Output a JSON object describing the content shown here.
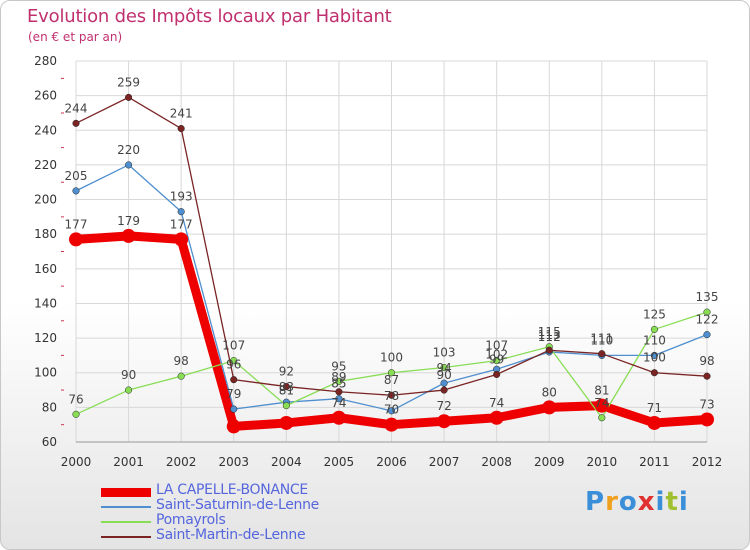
{
  "title": "Evolution des Impôts locaux par Habitant",
  "subtitle": "(en € et par an)",
  "logo": {
    "text": "Proxiti",
    "colors": [
      "#3a8fd8",
      "#f0a020",
      "#3a8fd8",
      "#e03030",
      "#3a8fd8",
      "#a0c030",
      "#3a8fd8"
    ]
  },
  "chart_data": {
    "type": "line",
    "title": "Evolution des Impôts locaux par Habitant",
    "subtitle": "(en € et par an)",
    "xlabel": "",
    "ylabel": "",
    "ylim": [
      60,
      280
    ],
    "yticks": [
      60,
      80,
      100,
      120,
      140,
      160,
      180,
      200,
      220,
      240,
      260,
      280
    ],
    "x": [
      "2000",
      "2001",
      "2002",
      "2003",
      "2004",
      "2005",
      "2006",
      "2007",
      "2008",
      "2009",
      "2010",
      "2011",
      "2012"
    ],
    "grid": true,
    "series": [
      {
        "name": "LA CAPELLE-BONANCE",
        "color": "#ee0000",
        "thick": true,
        "values": [
          177,
          179,
          177,
          69,
          71,
          74,
          70,
          72,
          74,
          80,
          81,
          71,
          73
        ],
        "labels": [
          "177",
          "179",
          "177",
          "",
          "",
          "74",
          "70",
          "72",
          "74",
          "80",
          "81",
          "71",
          "73"
        ]
      },
      {
        "name": "Saint-Saturnin-de-Lenne",
        "color": "#4f8fcf",
        "thick": false,
        "values": [
          205,
          220,
          193,
          79,
          83,
          85,
          78,
          94,
          102,
          112,
          110,
          110,
          122
        ],
        "labels": [
          "205",
          "220",
          "193",
          "79",
          "83",
          "85",
          "78",
          "94",
          "102",
          "112",
          "110",
          "110",
          "122"
        ]
      },
      {
        "name": "Pomayrols",
        "color": "#88dd55",
        "thick": false,
        "values": [
          76,
          90,
          98,
          107,
          81,
          95,
          100,
          103,
          107,
          115,
          74,
          125,
          135
        ],
        "labels": [
          "76",
          "90",
          "98",
          "107",
          "81",
          "95",
          "100",
          "103",
          "107",
          "115",
          "74",
          "125",
          "135"
        ]
      },
      {
        "name": "Saint-Martin-de-Lenne",
        "color": "#7a2424",
        "thick": false,
        "values": [
          244,
          259,
          241,
          96,
          92,
          89,
          87,
          90,
          99,
          113,
          111,
          100,
          98
        ],
        "labels": [
          "244",
          "259",
          "241",
          "96",
          "92",
          "89",
          "87",
          "90",
          "99",
          "113",
          "111",
          "100",
          "98"
        ]
      }
    ]
  }
}
